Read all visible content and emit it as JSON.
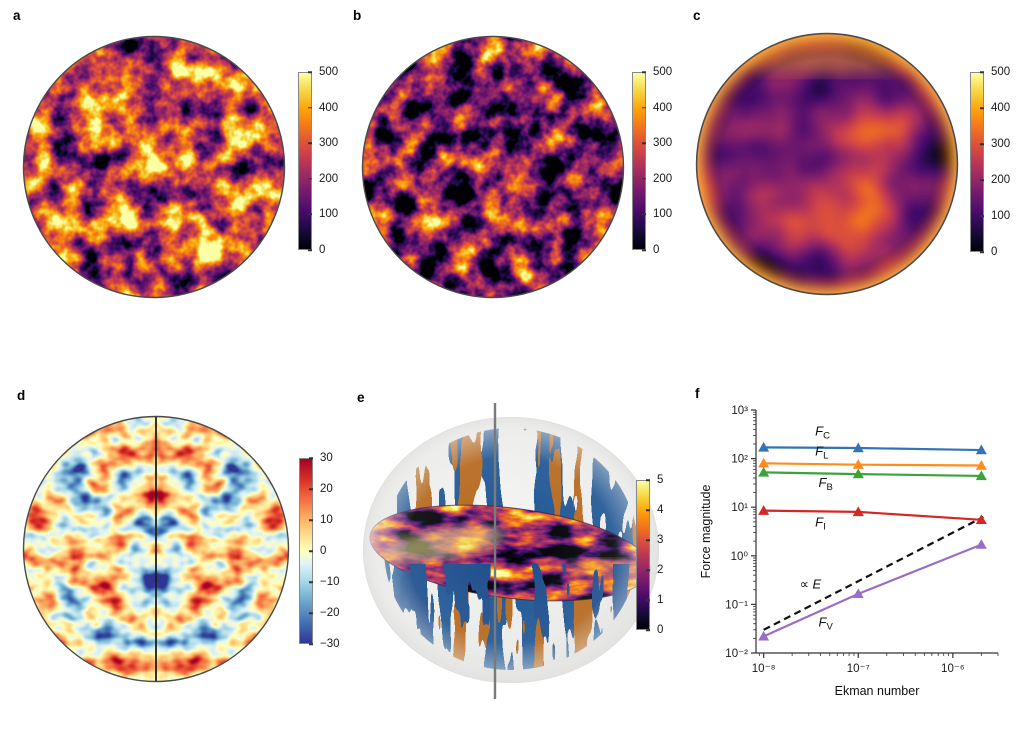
{
  "panels": {
    "a": {
      "label": "a",
      "colorbar": {
        "colormap": "inferno",
        "min": 0,
        "max": 500,
        "ticks": [
          {
            "v": 500,
            "label": "500"
          },
          {
            "v": 400,
            "label": "400"
          },
          {
            "v": 300,
            "label": "300"
          },
          {
            "v": 200,
            "label": "200"
          },
          {
            "v": 100,
            "label": "100"
          },
          {
            "v": 0,
            "label": "0"
          }
        ]
      }
    },
    "b": {
      "label": "b",
      "colorbar": {
        "colormap": "inferno",
        "min": 0,
        "max": 500,
        "ticks": [
          {
            "v": 500,
            "label": "500"
          },
          {
            "v": 400,
            "label": "400"
          },
          {
            "v": 300,
            "label": "300"
          },
          {
            "v": 200,
            "label": "200"
          },
          {
            "v": 100,
            "label": "100"
          },
          {
            "v": 0,
            "label": "0"
          }
        ]
      }
    },
    "c": {
      "label": "c",
      "colorbar": {
        "colormap": "inferno",
        "min": 0,
        "max": 500,
        "ticks": [
          {
            "v": 500,
            "label": "500"
          },
          {
            "v": 400,
            "label": "400"
          },
          {
            "v": 300,
            "label": "300"
          },
          {
            "v": 200,
            "label": "200"
          },
          {
            "v": 100,
            "label": "100"
          },
          {
            "v": 0,
            "label": "0"
          }
        ]
      }
    },
    "d": {
      "label": "d",
      "colorbar": {
        "colormap": "RdYlBu",
        "min": -30,
        "max": 30,
        "ticks": [
          {
            "v": 30,
            "label": "30"
          },
          {
            "v": 20,
            "label": "20"
          },
          {
            "v": 10,
            "label": "10"
          },
          {
            "v": 0,
            "label": "0"
          },
          {
            "v": -10,
            "label": "−10"
          },
          {
            "v": -20,
            "label": "−20"
          },
          {
            "v": -30,
            "label": "−30"
          }
        ]
      }
    },
    "e": {
      "label": "e",
      "colorbar": {
        "colormap": "inferno",
        "min": 0,
        "max": 5,
        "ticks": [
          {
            "v": 5,
            "label": "5"
          },
          {
            "v": 4,
            "label": "4"
          },
          {
            "v": 3,
            "label": "3"
          },
          {
            "v": 2,
            "label": "2"
          },
          {
            "v": 1,
            "label": "1"
          },
          {
            "v": 0,
            "label": "0"
          }
        ]
      }
    },
    "f": {
      "label": "f"
    }
  },
  "chart_data": {
    "type": "line",
    "x_scale": "log",
    "y_scale": "log",
    "xlabel": "Ekman number",
    "ylabel": "Force magnitude",
    "xlim": [
      8.3e-09,
      3e-06
    ],
    "ylim": [
      0.01,
      1000
    ],
    "x_ticks": [
      {
        "v": 1e-08,
        "label": "10⁻⁸"
      },
      {
        "v": 1e-07,
        "label": "10⁻⁷"
      },
      {
        "v": 1e-06,
        "label": "10⁻⁶"
      }
    ],
    "y_ticks": [
      {
        "v": 1000,
        "label": "10³"
      },
      {
        "v": 100,
        "label": "10²"
      },
      {
        "v": 10,
        "label": "10¹"
      },
      {
        "v": 1,
        "label": "10⁰"
      },
      {
        "v": 0.1,
        "label": "10⁻¹"
      },
      {
        "v": 0.01,
        "label": "10⁻²"
      }
    ],
    "x": [
      1e-08,
      1e-07,
      2e-06
    ],
    "marker": "triangle-up",
    "series": [
      {
        "name": "F_C",
        "label_base": "F",
        "label_sub": "C",
        "color": "#3274b5",
        "values": [
          170,
          165,
          150
        ],
        "label_at": {
          "x": 3.5e-08,
          "y": 300
        }
      },
      {
        "name": "F_L",
        "label_base": "F",
        "label_sub": "L",
        "color": "#ff8c1c",
        "values": [
          80,
          75,
          72
        ],
        "label_at": {
          "x": 3.5e-08,
          "y": 115
        }
      },
      {
        "name": "F_B",
        "label_base": "F",
        "label_sub": "B",
        "color": "#3aa33a",
        "values": [
          52,
          48,
          44
        ],
        "label_at": {
          "x": 3.8e-08,
          "y": 26
        }
      },
      {
        "name": "F_I",
        "label_base": "F",
        "label_sub": "I",
        "color": "#d62728",
        "values": [
          8.5,
          8.0,
          5.5
        ],
        "label_at": {
          "x": 3.5e-08,
          "y": 4
        }
      },
      {
        "name": "F_V",
        "label_base": "F",
        "label_sub": "V",
        "color": "#9a6dc8",
        "values": [
          0.022,
          0.165,
          1.7
        ],
        "label_at": {
          "x": 3.8e-08,
          "y": 0.035
        }
      }
    ],
    "reference_line": {
      "label_symbol": "∝",
      "label_var": "E",
      "style": "dashed",
      "color": "#111111",
      "x": [
        1e-08,
        2.1e-06
      ],
      "values": [
        0.03,
        6.3
      ],
      "label_at": {
        "x": 2.4e-08,
        "y": 0.21
      }
    }
  }
}
